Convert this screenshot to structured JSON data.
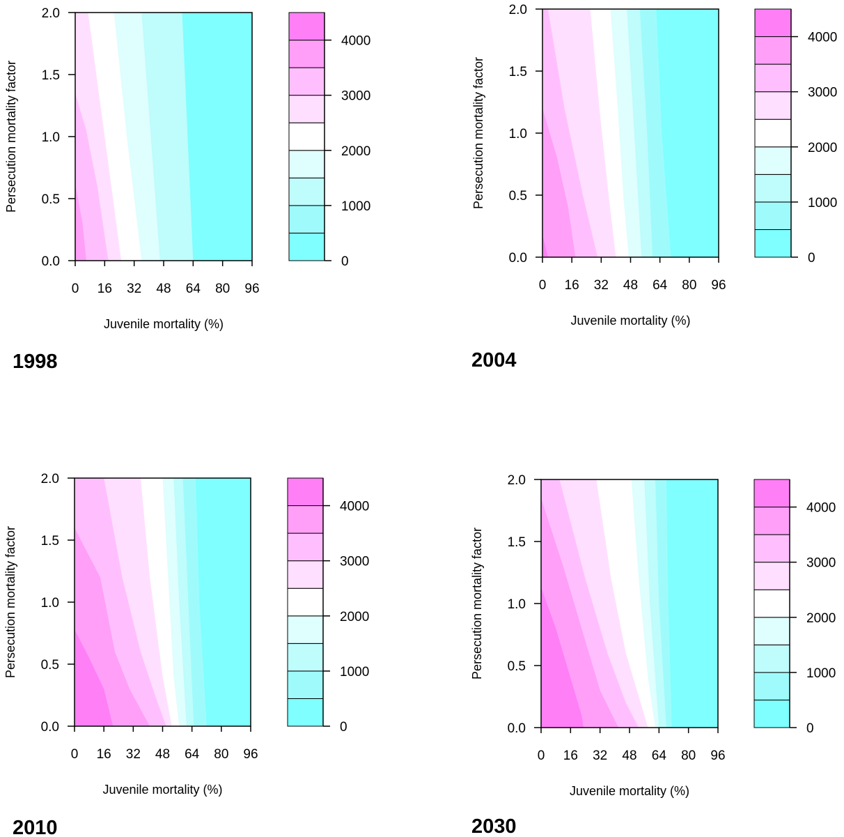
{
  "chart_data": [
    {
      "type": "filled-contour",
      "panel_label": "1998",
      "xlabel": "Juvenile mortality (%)",
      "ylabel": "Persecution mortality factor",
      "xticks": [
        "0",
        "16",
        "32",
        "48",
        "64",
        "80",
        "96"
      ],
      "yticks": [
        "0.0",
        "0.5",
        "1.0",
        "1.5",
        "2.0"
      ],
      "xlim": [
        0,
        96
      ],
      "ylim": [
        0,
        2
      ],
      "colorbar": {
        "ticks": [
          "0",
          "1000",
          "2000",
          "3000",
          "4000"
        ],
        "range": [
          0,
          4500
        ]
      },
      "contour_boundaries": [
        {
          "level": 3500,
          "points": [
            [
              0,
              0.62
            ],
            [
              4,
              0.3
            ],
            [
              6,
              0
            ]
          ]
        },
        {
          "level": 3000,
          "points": [
            [
              0,
              1.35
            ],
            [
              6,
              1.05
            ],
            [
              12,
              0.6
            ],
            [
              18,
              0
            ]
          ]
        },
        {
          "level": 2500,
          "points": [
            [
              7,
              2.0
            ],
            [
              16,
              1.0
            ],
            [
              25,
              0
            ]
          ]
        },
        {
          "level": 2000,
          "points": [
            [
              21,
              2.0
            ],
            [
              28,
              1.0
            ],
            [
              36,
              0
            ]
          ]
        },
        {
          "level": 1500,
          "points": [
            [
              36,
              2.0
            ],
            [
              41,
              1.0
            ],
            [
              46,
              0
            ]
          ]
        },
        {
          "level": 1000,
          "points": [
            [
              58,
              2.0
            ],
            [
              61,
              1.0
            ],
            [
              64,
              0
            ]
          ]
        }
      ]
    },
    {
      "type": "filled-contour",
      "panel_label": "2004",
      "xlabel": "Juvenile mortality (%)",
      "ylabel": "Persecution mortality factor",
      "xticks": [
        "0",
        "16",
        "32",
        "48",
        "64",
        "80",
        "96"
      ],
      "yticks": [
        "0.0",
        "0.5",
        "1.0",
        "1.5",
        "2.0"
      ],
      "xlim": [
        0,
        96
      ],
      "ylim": [
        0,
        2
      ],
      "colorbar": {
        "ticks": [
          "0",
          "1000",
          "2000",
          "3000",
          "4000"
        ],
        "range": [
          0,
          4500
        ]
      },
      "contour_boundaries": [
        {
          "level": 4000,
          "points": [
            [
              0,
              0.18
            ],
            [
              3,
              0
            ]
          ]
        },
        {
          "level": 3500,
          "points": [
            [
              0,
              1.2
            ],
            [
              8,
              0.8
            ],
            [
              14,
              0.4
            ],
            [
              18,
              0
            ]
          ]
        },
        {
          "level": 3000,
          "points": [
            [
              3,
              2.0
            ],
            [
              12,
              1.2
            ],
            [
              22,
              0.5
            ],
            [
              30,
              0
            ]
          ]
        },
        {
          "level": 2500,
          "points": [
            [
              26,
              2.0
            ],
            [
              31,
              1.2
            ],
            [
              36,
              0.5
            ],
            [
              40,
              0
            ]
          ]
        },
        {
          "level": 2000,
          "points": [
            [
              37,
              2.0
            ],
            [
              41,
              1.2
            ],
            [
              44,
              0.5
            ],
            [
              47,
              0
            ]
          ]
        },
        {
          "level": 1500,
          "points": [
            [
              46,
              2.0
            ],
            [
              50,
              1.0
            ],
            [
              54,
              0
            ]
          ]
        },
        {
          "level": 1000,
          "points": [
            [
              53,
              2.0
            ],
            [
              57,
              1.0
            ],
            [
              60,
              0
            ]
          ]
        },
        {
          "level": 500,
          "points": [
            [
              62,
              2.0
            ],
            [
              65,
              1.0
            ],
            [
              70,
              0
            ]
          ]
        }
      ]
    },
    {
      "type": "filled-contour",
      "panel_label": "2010",
      "xlabel": "Juvenile mortality (%)",
      "ylabel": "Persecution mortality factor",
      "xticks": [
        "0",
        "16",
        "32",
        "48",
        "64",
        "80",
        "96"
      ],
      "yticks": [
        "0.0",
        "0.5",
        "1.0",
        "1.5",
        "2.0"
      ],
      "xlim": [
        0,
        96
      ],
      "ylim": [
        0,
        2
      ],
      "colorbar": {
        "ticks": [
          "0",
          "1000",
          "2000",
          "3000",
          "4000"
        ],
        "range": [
          0,
          4500
        ]
      },
      "contour_boundaries": [
        {
          "level": 4000,
          "points": [
            [
              0,
              0.78
            ],
            [
              8,
              0.55
            ],
            [
              16,
              0.3
            ],
            [
              21,
              0
            ]
          ]
        },
        {
          "level": 3500,
          "points": [
            [
              0,
              1.6
            ],
            [
              14,
              1.2
            ],
            [
              22,
              0.6
            ],
            [
              30,
              0.3
            ],
            [
              41,
              0
            ]
          ]
        },
        {
          "level": 3000,
          "points": [
            [
              16,
              2.0
            ],
            [
              26,
              1.2
            ],
            [
              36,
              0.6
            ],
            [
              45,
              0.2
            ],
            [
              50,
              0
            ]
          ]
        },
        {
          "level": 2500,
          "points": [
            [
              36,
              2.0
            ],
            [
              41,
              1.2
            ],
            [
              48,
              0.4
            ],
            [
              53,
              0
            ]
          ]
        },
        {
          "level": 2000,
          "points": [
            [
              48,
              2.0
            ],
            [
              51,
              1.2
            ],
            [
              54,
              0.4
            ],
            [
              57,
              0
            ]
          ]
        },
        {
          "level": 1500,
          "points": [
            [
              54,
              2.0
            ],
            [
              57,
              1.0
            ],
            [
              61,
              0
            ]
          ]
        },
        {
          "level": 1000,
          "points": [
            [
              59,
              2.0
            ],
            [
              62,
              1.0
            ],
            [
              65,
              0
            ]
          ]
        },
        {
          "level": 500,
          "points": [
            [
              66,
              2.0
            ],
            [
              68,
              1.0
            ],
            [
              72,
              0
            ]
          ]
        }
      ]
    },
    {
      "type": "filled-contour",
      "panel_label": "2030",
      "xlabel": "Juvenile mortality (%)",
      "ylabel": "Persecution mortality factor",
      "xticks": [
        "0",
        "16",
        "32",
        "48",
        "64",
        "80",
        "96"
      ],
      "yticks": [
        "0.0",
        "0.5",
        "1.0",
        "1.5",
        "2.0"
      ],
      "xlim": [
        0,
        96
      ],
      "ylim": [
        0,
        2
      ],
      "colorbar": {
        "ticks": [
          "0",
          "1000",
          "2000",
          "3000",
          "4000"
        ],
        "range": [
          0,
          4500
        ]
      },
      "contour_boundaries": [
        {
          "level": 4000,
          "points": [
            [
              0,
              1.13
            ],
            [
              8,
              0.8
            ],
            [
              16,
              0.4
            ],
            [
              22,
              0.1
            ],
            [
              23,
              0
            ]
          ]
        },
        {
          "level": 3500,
          "points": [
            [
              0,
              1.85
            ],
            [
              12,
              1.3
            ],
            [
              22,
              0.8
            ],
            [
              32,
              0.3
            ],
            [
              42,
              0
            ]
          ]
        },
        {
          "level": 3000,
          "points": [
            [
              10,
              2.0
            ],
            [
              24,
              1.2
            ],
            [
              36,
              0.6
            ],
            [
              46,
              0.2
            ],
            [
              53,
              0
            ]
          ]
        },
        {
          "level": 2500,
          "points": [
            [
              30,
              2.0
            ],
            [
              38,
              1.2
            ],
            [
              46,
              0.6
            ],
            [
              58,
              0
            ]
          ]
        },
        {
          "level": 2000,
          "points": [
            [
              49,
              2.0
            ],
            [
              53,
              1.2
            ],
            [
              58,
              0.4
            ],
            [
              62,
              0
            ]
          ]
        },
        {
          "level": 1500,
          "points": [
            [
              56,
              2.0
            ],
            [
              59,
              1.0
            ],
            [
              64,
              0
            ]
          ]
        },
        {
          "level": 1000,
          "points": [
            [
              62,
              2.0
            ],
            [
              64,
              1.0
            ],
            [
              68,
              0
            ]
          ]
        },
        {
          "level": 500,
          "points": [
            [
              68,
              2.0
            ],
            [
              69,
              1.0
            ],
            [
              71,
              0
            ]
          ]
        }
      ]
    }
  ],
  "palette": {
    "bands": [
      "#7fffff",
      "#9ffbfb",
      "#bffcfc",
      "#dffefe",
      "#ffffff",
      "#ffdfff",
      "#ffbfff",
      "#ff9ff8",
      "#ff7ff6"
    ]
  }
}
